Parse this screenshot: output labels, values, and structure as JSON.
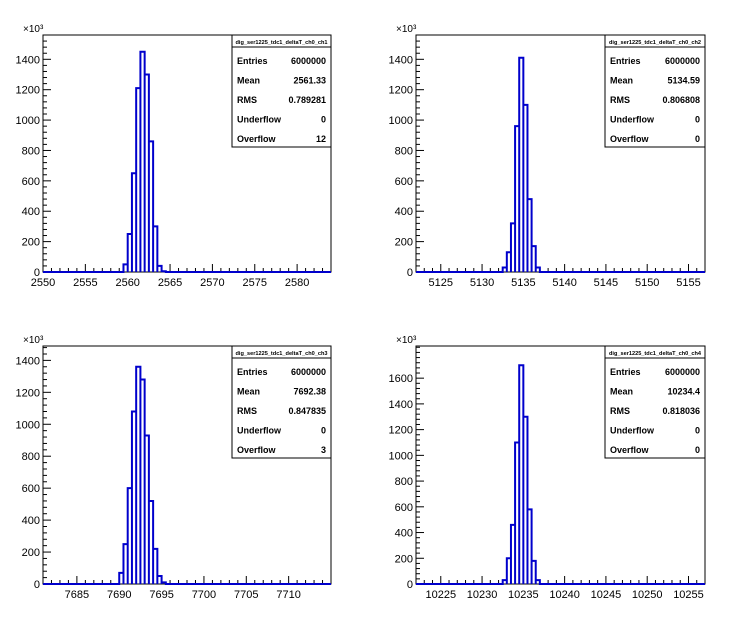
{
  "chart_data": [
    {
      "type": "bar",
      "title": "",
      "stats_box_title": "dig_ser1225_tdc1_deltaT_ch0_ch1",
      "stats": [
        {
          "label": "Entries",
          "value": "6000000"
        },
        {
          "label": "Mean",
          "value": "2561.33"
        },
        {
          "label": "RMS",
          "value": "0.789281"
        },
        {
          "label": "Underflow",
          "value": "0"
        },
        {
          "label": "Overflow",
          "value": "12"
        }
      ],
      "xlabel": "",
      "ylabel": "",
      "y_multiplier_label": "×10³",
      "xlim": [
        2550,
        2584
      ],
      "ylim": [
        0,
        1560
      ],
      "xticks": [
        2550,
        2555,
        2560,
        2565,
        2570,
        2575,
        2580
      ],
      "yticks": [
        0,
        200,
        400,
        600,
        800,
        1000,
        1200,
        1400
      ],
      "bin_width": 0.5,
      "bins": [
        {
          "x": 2559.5,
          "y": 50
        },
        {
          "x": 2560.0,
          "y": 250
        },
        {
          "x": 2560.5,
          "y": 650
        },
        {
          "x": 2561.0,
          "y": 1210
        },
        {
          "x": 2561.5,
          "y": 1450
        },
        {
          "x": 2562.0,
          "y": 1300
        },
        {
          "x": 2562.5,
          "y": 860
        },
        {
          "x": 2563.0,
          "y": 300
        },
        {
          "x": 2563.5,
          "y": 40
        },
        {
          "x": 2564.0,
          "y": 5
        }
      ]
    },
    {
      "type": "bar",
      "title": "",
      "stats_box_title": "dig_ser1225_tdc1_deltaT_ch0_ch2",
      "stats": [
        {
          "label": "Entries",
          "value": "6000000"
        },
        {
          "label": "Mean",
          "value": "5134.59"
        },
        {
          "label": "RMS",
          "value": "0.806808"
        },
        {
          "label": "Underflow",
          "value": "0"
        },
        {
          "label": "Overflow",
          "value": "0"
        }
      ],
      "xlabel": "",
      "ylabel": "",
      "y_multiplier_label": "×10³",
      "xlim": [
        5122,
        5157
      ],
      "ylim": [
        0,
        1560
      ],
      "xticks": [
        5125,
        5130,
        5135,
        5140,
        5145,
        5150,
        5155
      ],
      "yticks": [
        0,
        200,
        400,
        600,
        800,
        1000,
        1200,
        1400
      ],
      "bin_width": 0.5,
      "bins": [
        {
          "x": 5132.5,
          "y": 30
        },
        {
          "x": 5133.0,
          "y": 130
        },
        {
          "x": 5133.5,
          "y": 320
        },
        {
          "x": 5134.0,
          "y": 960
        },
        {
          "x": 5134.5,
          "y": 1410
        },
        {
          "x": 5135.0,
          "y": 1100
        },
        {
          "x": 5135.5,
          "y": 480
        },
        {
          "x": 5136.0,
          "y": 170
        },
        {
          "x": 5136.5,
          "y": 30
        }
      ]
    },
    {
      "type": "bar",
      "title": "",
      "stats_box_title": "dig_ser1225_tdc1_deltaT_ch0_ch3",
      "stats": [
        {
          "label": "Entries",
          "value": "6000000"
        },
        {
          "label": "Mean",
          "value": "7692.38"
        },
        {
          "label": "RMS",
          "value": "0.847835"
        },
        {
          "label": "Underflow",
          "value": "0"
        },
        {
          "label": "Overflow",
          "value": "3"
        }
      ],
      "xlabel": "",
      "ylabel": "",
      "y_multiplier_label": "×10³",
      "xlim": [
        7681,
        7715
      ],
      "ylim": [
        0,
        1490
      ],
      "xticks": [
        7685,
        7690,
        7695,
        7700,
        7705,
        7710
      ],
      "yticks": [
        0,
        200,
        400,
        600,
        800,
        1000,
        1200,
        1400
      ],
      "bin_width": 0.5,
      "bins": [
        {
          "x": 7690.0,
          "y": 70
        },
        {
          "x": 7690.5,
          "y": 250
        },
        {
          "x": 7691.0,
          "y": 600
        },
        {
          "x": 7691.5,
          "y": 1080
        },
        {
          "x": 7692.0,
          "y": 1360
        },
        {
          "x": 7692.5,
          "y": 1280
        },
        {
          "x": 7693.0,
          "y": 930
        },
        {
          "x": 7693.5,
          "y": 520
        },
        {
          "x": 7694.0,
          "y": 220
        },
        {
          "x": 7694.5,
          "y": 50
        },
        {
          "x": 7695.0,
          "y": 10
        }
      ]
    },
    {
      "type": "bar",
      "title": "",
      "stats_box_title": "dig_ser1225_tdc1_deltaT_ch0_ch4",
      "stats": [
        {
          "label": "Entries",
          "value": "6000000"
        },
        {
          "label": "Mean",
          "value": "10234.4"
        },
        {
          "label": "RMS",
          "value": "0.818036"
        },
        {
          "label": "Underflow",
          "value": "0"
        },
        {
          "label": "Overflow",
          "value": "0"
        }
      ],
      "xlabel": "",
      "ylabel": "",
      "y_multiplier_label": "×10³",
      "xlim": [
        10222,
        10257
      ],
      "ylim": [
        0,
        1850
      ],
      "xticks": [
        10225,
        10230,
        10235,
        10240,
        10245,
        10250,
        10255
      ],
      "yticks": [
        0,
        200,
        400,
        600,
        800,
        1000,
        1200,
        1400,
        1600
      ],
      "bin_width": 0.5,
      "bins": [
        {
          "x": 10232.5,
          "y": 30
        },
        {
          "x": 10233.0,
          "y": 200
        },
        {
          "x": 10233.5,
          "y": 460
        },
        {
          "x": 10234.0,
          "y": 1100
        },
        {
          "x": 10234.5,
          "y": 1700
        },
        {
          "x": 10235.0,
          "y": 1300
        },
        {
          "x": 10235.5,
          "y": 580
        },
        {
          "x": 10236.0,
          "y": 180
        },
        {
          "x": 10236.5,
          "y": 30
        }
      ]
    }
  ],
  "colors": {
    "histogram_line": "#0000cc",
    "axes": "#000000",
    "background": "#ffffff"
  }
}
